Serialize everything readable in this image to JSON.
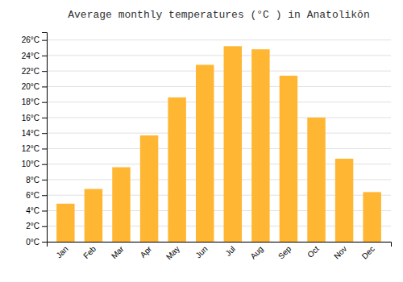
{
  "chart_data": {
    "type": "bar",
    "title": "Average monthly temperatures (°C ) in Anatolikōn",
    "categories": [
      "Jan",
      "Feb",
      "Mar",
      "Apr",
      "May",
      "Jun",
      "Jul",
      "Aug",
      "Sep",
      "Oct",
      "Nov",
      "Dec"
    ],
    "values": [
      4.9,
      6.8,
      9.6,
      13.7,
      18.6,
      22.8,
      25.2,
      24.8,
      21.4,
      16.0,
      10.7,
      6.4
    ],
    "color": "#FFB733",
    "ylim": [
      0,
      27
    ],
    "yticks": [
      {
        "value": 0,
        "label": "0°C"
      },
      {
        "value": 2,
        "label": "2°C"
      },
      {
        "value": 4,
        "label": "4°C"
      },
      {
        "value": 6,
        "label": "6°C"
      },
      {
        "value": 8,
        "label": "8°C"
      },
      {
        "value": 10,
        "label": "10°C"
      },
      {
        "value": 12,
        "label": "12°C"
      },
      {
        "value": 14,
        "label": "14°C"
      },
      {
        "value": 16,
        "label": "16°C"
      },
      {
        "value": 18,
        "label": "18°C"
      },
      {
        "value": 20,
        "label": "20°C"
      },
      {
        "value": 22,
        "label": "22°C"
      },
      {
        "value": 24,
        "label": "24°C"
      },
      {
        "value": 26,
        "label": "26°C"
      }
    ],
    "grid": true
  }
}
